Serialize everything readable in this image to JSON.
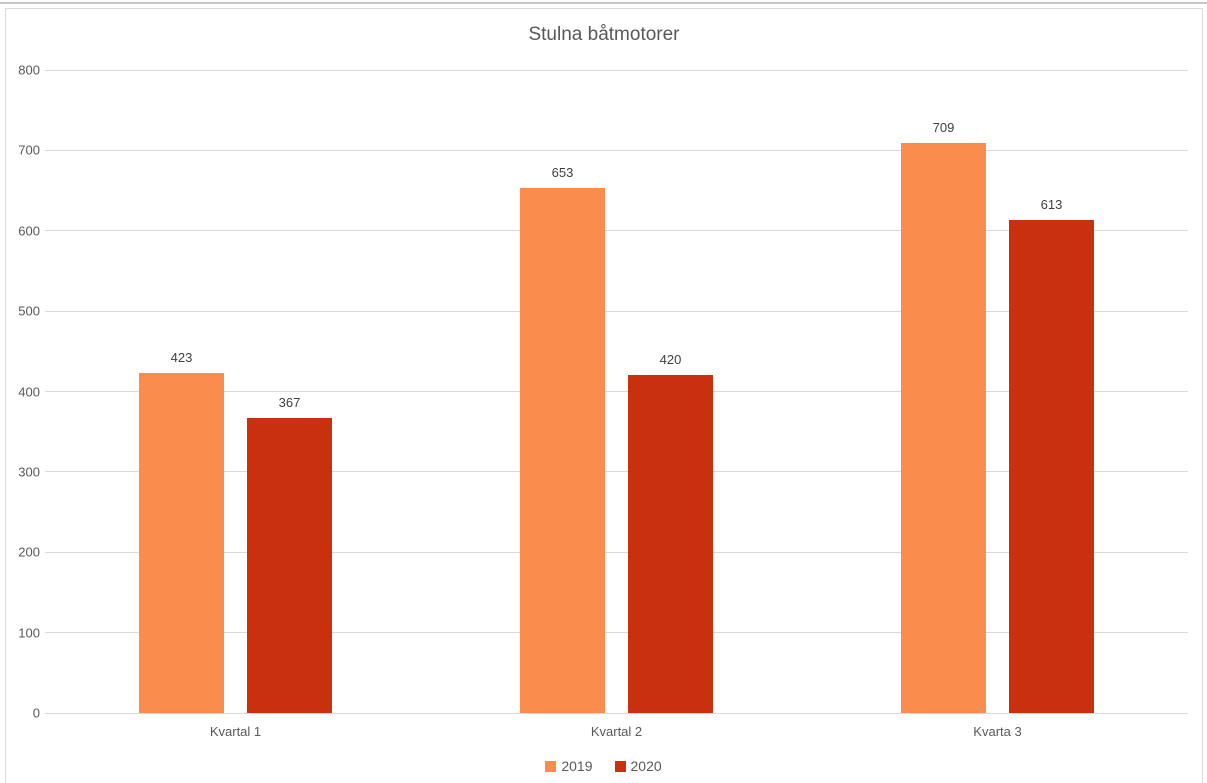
{
  "window": {
    "background": "#ffffff",
    "top_border_color": "#c6c6c6",
    "frame_border_color": "#d9d9d9"
  },
  "chart_data": {
    "type": "bar",
    "title": "Stulna båtmotorer",
    "categories": [
      "Kvartal 1",
      "Kvartal 2",
      "Kvarta 3"
    ],
    "series": [
      {
        "name": "2019",
        "color": "#FA8D4E",
        "values": [
          423,
          653,
          709
        ]
      },
      {
        "name": "2020",
        "color": "#C9300D",
        "values": [
          367,
          420,
          613
        ]
      }
    ],
    "ylim": [
      0,
      800
    ],
    "yticks": [
      0,
      100,
      200,
      300,
      400,
      500,
      600,
      700,
      800
    ],
    "xlabel": "",
    "ylabel": "",
    "grid": true,
    "gridline_color": "#d9d9d9",
    "axis_text_color": "#595959",
    "value_label_color": "#404040",
    "data_labels": true,
    "legend_position": "bottom"
  }
}
